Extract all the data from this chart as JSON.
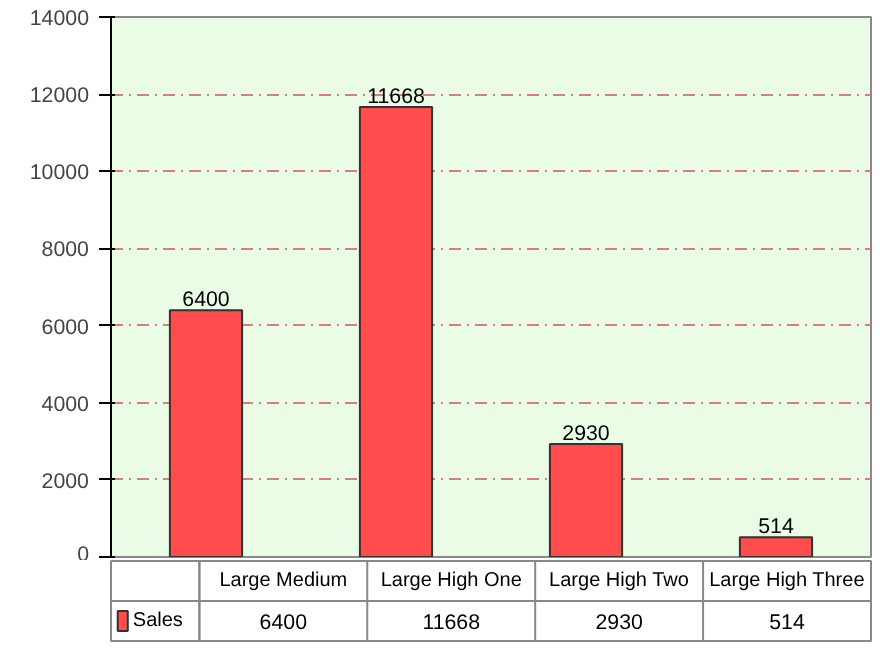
{
  "chart_data": {
    "type": "bar",
    "categories": [
      "Large Medium",
      "Large High One",
      "Large High Two",
      "Large High Three"
    ],
    "series": [
      {
        "name": "Sales",
        "color": "#ff4d4d",
        "values": [
          6400,
          11668,
          2930,
          514
        ],
        "value_labels": [
          "6400",
          "11668",
          "2930",
          "514"
        ]
      }
    ],
    "ylim": [
      0,
      14000
    ],
    "yticks": [
      0,
      2000,
      4000,
      6000,
      8000,
      10000,
      12000,
      14000
    ],
    "grid": "y",
    "annotations": [
      "6400",
      "11668",
      "2930",
      "514"
    ],
    "legend": "bottom"
  }
}
